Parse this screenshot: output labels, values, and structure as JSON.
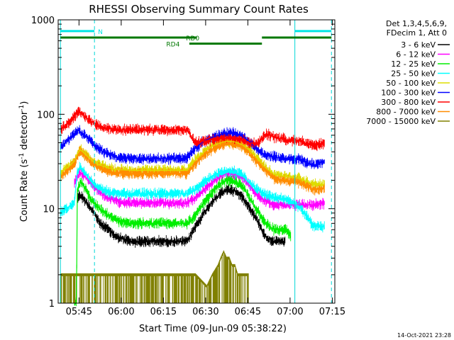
{
  "chart_data": {
    "type": "line",
    "title": "RHESSI Observing Summary Count Rates",
    "xlabel": "Start Time (09-Jun-09 05:38:22)",
    "ylabel_parts": [
      "Count Rate (s",
      "-1",
      " detector",
      "-1",
      ")"
    ],
    "yscale": "log",
    "xlim": [
      -0.8,
      97.5
    ],
    "ylim": [
      1,
      1000
    ],
    "x_units": "minutes after 05:38:22",
    "x_ticks": [
      {
        "label": "05:45",
        "value": 6.6
      },
      {
        "label": "06:00",
        "value": 21.6
      },
      {
        "label": "06:15",
        "value": 36.6
      },
      {
        "label": "06:30",
        "value": 51.6
      },
      {
        "label": "06:45",
        "value": 66.6
      },
      {
        "label": "07:00",
        "value": 81.6
      },
      {
        "label": "07:15",
        "value": 96.6
      }
    ],
    "y_ticks": [
      {
        "label": "1",
        "value": 1
      },
      {
        "label": "10",
        "value": 10
      },
      {
        "label": "100",
        "value": 100
      },
      {
        "label": "1000",
        "value": 1000
      }
    ],
    "timestamp": "14-Oct-2021 23:28",
    "legend_header": [
      "Det 1,3,4,5,6,9,",
      "FDecim 1, Att 0"
    ],
    "solid_vlines": [
      0,
      83.3
    ],
    "dashed_vlines": [
      12.1,
      96.3
    ],
    "flags": [
      {
        "name": "N",
        "color": "#00e5e5",
        "y": 760,
        "segments": [
          [
            0,
            12.1
          ],
          [
            83.3,
            96.3
          ]
        ],
        "label_x": 14.2
      },
      {
        "name": "RD0",
        "color": "#007700",
        "y": 650,
        "segments": [
          [
            0,
            48.5
          ],
          [
            71.6,
            96.3
          ]
        ],
        "label_x": 47
      },
      {
        "name": "RD4",
        "color": "#007700",
        "y": 560,
        "segments": [
          [
            45.8,
            71.6
          ]
        ],
        "label_x": 40
      }
    ],
    "series": [
      {
        "name": "3 - 6 keV",
        "color": "#000000",
        "x": [
          5,
          6,
          7,
          8,
          10,
          12,
          14,
          17,
          20,
          25,
          30,
          35,
          40,
          45,
          48,
          51,
          54,
          57,
          59,
          62,
          65,
          67,
          70,
          73,
          76,
          80,
          85,
          90,
          94
        ],
        "y": [
          null,
          13,
          14,
          13,
          11,
          9,
          7,
          6,
          5,
          4.5,
          4.5,
          4.5,
          4.5,
          4.5,
          6.5,
          9,
          12,
          14.5,
          16,
          15.5,
          13,
          10.5,
          7.5,
          5,
          4.5,
          4.5,
          null,
          null,
          null
        ]
      },
      {
        "name": "6 - 12 keV",
        "color": "#ff00ff",
        "x": [
          5,
          6,
          7,
          8,
          10,
          12,
          14,
          17,
          20,
          25,
          30,
          35,
          40,
          45,
          48,
          51,
          54,
          57,
          59,
          62,
          65,
          67,
          70,
          73,
          76,
          80,
          85,
          90,
          94
        ],
        "y": [
          18,
          22,
          24,
          23,
          20,
          17,
          15,
          13,
          12,
          11.5,
          11.5,
          11.5,
          11.5,
          11.5,
          13,
          16,
          19,
          22,
          23.5,
          23,
          21,
          18,
          14,
          12,
          11,
          11,
          11,
          11,
          11.5
        ]
      },
      {
        "name": "12 - 25 keV",
        "color": "#00ee00",
        "x": [
          5,
          5.7,
          6,
          7,
          8,
          10,
          12,
          14,
          17,
          20,
          25,
          30,
          35,
          40,
          45,
          48,
          51,
          54,
          57,
          59,
          62,
          65,
          67,
          70,
          73,
          76,
          80,
          82,
          85,
          90,
          94
        ],
        "y": [
          1,
          1,
          16,
          19,
          18,
          14,
          11.5,
          10,
          8.5,
          7.5,
          7,
          7,
          7,
          7,
          7,
          8.5,
          11.5,
          15,
          18.5,
          20,
          19.5,
          17,
          13.5,
          9.5,
          7,
          6,
          6,
          5,
          null,
          null,
          null
        ]
      },
      {
        "name": "25 - 50 keV",
        "color": "#00ffff",
        "x": [
          0,
          3,
          5,
          6,
          7,
          8,
          10,
          12,
          14,
          17,
          20,
          25,
          30,
          35,
          40,
          45,
          48,
          51,
          54,
          57,
          59,
          62,
          65,
          67,
          70,
          73,
          76,
          80,
          85,
          90,
          94
        ],
        "y": [
          9,
          10.5,
          12,
          25,
          28,
          26,
          21,
          18,
          16.5,
          15,
          14.5,
          14.5,
          14.5,
          14.5,
          14.5,
          14.5,
          16,
          19,
          22,
          24.5,
          25,
          24.5,
          22,
          19,
          16,
          14,
          13,
          12.5,
          10.5,
          6.5,
          6.5
        ]
      },
      {
        "name": "50 - 100 keV",
        "color": "#dddd00",
        "x": [
          0,
          3,
          5,
          6,
          7,
          8,
          10,
          12,
          14,
          17,
          20,
          25,
          30,
          35,
          40,
          45,
          48,
          51,
          54,
          57,
          59,
          62,
          65,
          67,
          70,
          73,
          76,
          80,
          85,
          90,
          94
        ],
        "y": [
          24,
          28,
          32,
          38,
          42,
          40,
          35,
          31,
          29,
          27,
          26,
          25.5,
          25.5,
          25.5,
          25.5,
          25.5,
          33,
          40,
          46,
          50,
          52,
          51,
          47,
          42,
          34,
          27,
          23,
          22,
          21,
          18,
          18
        ]
      },
      {
        "name": "100 - 300 keV",
        "color": "#0000ff",
        "x": [
          0,
          3,
          5,
          6,
          7,
          8,
          10,
          12,
          14,
          17,
          20,
          25,
          30,
          35,
          40,
          45,
          48,
          51,
          54,
          57,
          59,
          62,
          65,
          67,
          70,
          73,
          76,
          80,
          85,
          90,
          94
        ],
        "y": [
          45,
          54,
          62,
          68,
          66,
          62,
          55,
          47,
          42,
          38,
          35,
          34,
          34,
          34,
          34,
          34,
          44,
          52,
          57,
          61,
          63,
          62,
          58,
          52,
          42,
          37,
          35,
          34,
          33,
          29,
          32
        ]
      },
      {
        "name": "300 - 800 keV",
        "color": "#ff0000",
        "x": [
          0,
          3,
          5,
          6,
          7,
          8,
          10,
          12,
          14,
          17,
          20,
          25,
          30,
          35,
          40,
          45,
          48,
          51,
          54,
          57,
          59,
          62,
          65,
          67,
          70,
          73,
          76,
          80,
          85,
          90,
          94
        ],
        "y": [
          68,
          82,
          95,
          105,
          103,
          98,
          88,
          80,
          75,
          71,
          69,
          68,
          68,
          68,
          68,
          68,
          50,
          52,
          54,
          55,
          56,
          55,
          53,
          50,
          48,
          62,
          57,
          54,
          52,
          46,
          50
        ]
      },
      {
        "name": "800 - 7000 keV",
        "color": "#ff8c00",
        "x": [
          0,
          3,
          5,
          6,
          7,
          8,
          10,
          12,
          14,
          17,
          20,
          25,
          30,
          35,
          40,
          45,
          48,
          51,
          54,
          57,
          59,
          62,
          65,
          67,
          70,
          73,
          76,
          80,
          85,
          90,
          94
        ],
        "y": [
          22,
          26,
          30,
          36,
          40,
          38,
          33,
          29,
          27,
          25,
          24,
          23.5,
          23.5,
          23.5,
          23.5,
          23.5,
          30,
          37,
          43,
          47,
          49,
          48,
          44,
          39,
          31,
          25,
          21,
          20,
          19,
          16,
          16.5
        ]
      },
      {
        "name": "7000 - 15000 keV",
        "color": "#808000",
        "x": [
          0,
          12,
          40,
          48,
          52,
          54,
          56,
          57,
          58,
          59,
          60,
          61,
          62,
          63,
          64,
          65,
          66,
          67
        ],
        "y": [
          2,
          2,
          2,
          2,
          1.5,
          2,
          2.5,
          3,
          3.5,
          3,
          3,
          2.5,
          2.5,
          2,
          2,
          2,
          2,
          2
        ]
      }
    ]
  }
}
